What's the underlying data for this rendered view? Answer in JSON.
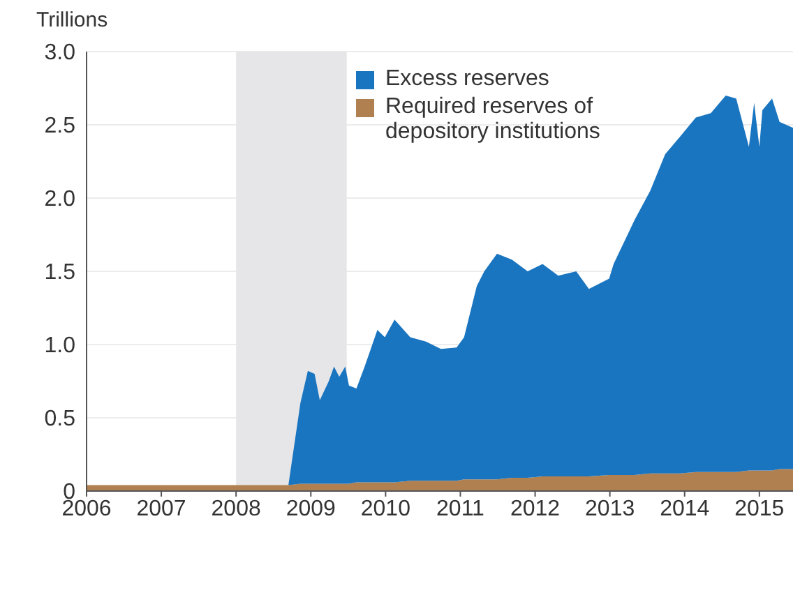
{
  "chart_data": {
    "type": "area",
    "stacked": true,
    "ylabel": "Trillions",
    "x": [
      2006,
      2007,
      2008,
      2008.7,
      2008.86,
      2008.96,
      2009.05,
      2009.12,
      2009.24,
      2009.31,
      2009.38,
      2009.46,
      2009.51,
      2009.61,
      2009.72,
      2009.89,
      2009.99,
      2010.12,
      2010.33,
      2010.54,
      2010.74,
      2010.95,
      2011.05,
      2011.22,
      2011.32,
      2011.49,
      2011.69,
      2011.9,
      2012.1,
      2012.31,
      2012.55,
      2012.72,
      2012.99,
      2013.05,
      2013.33,
      2013.54,
      2013.74,
      2013.94,
      2014.15,
      2014.35,
      2014.55,
      2014.69,
      2014.86,
      2014.93,
      2015.0,
      2015.04,
      2015.17,
      2015.27,
      2015.45
    ],
    "series": [
      {
        "name": "Required reserves of depository institutions",
        "color": "#b08050",
        "values": [
          0.04,
          0.04,
          0.04,
          0.04,
          0.05,
          0.05,
          0.05,
          0.05,
          0.05,
          0.05,
          0.05,
          0.05,
          0.05,
          0.06,
          0.06,
          0.06,
          0.06,
          0.06,
          0.07,
          0.07,
          0.07,
          0.07,
          0.08,
          0.08,
          0.08,
          0.08,
          0.09,
          0.09,
          0.1,
          0.1,
          0.1,
          0.1,
          0.11,
          0.11,
          0.11,
          0.12,
          0.12,
          0.12,
          0.13,
          0.13,
          0.13,
          0.13,
          0.14,
          0.14,
          0.14,
          0.14,
          0.14,
          0.15,
          0.15
        ]
      },
      {
        "name": "Excess reserves",
        "color": "#1a75c0",
        "values": [
          0,
          0,
          0,
          0,
          0.55,
          0.77,
          0.75,
          0.57,
          0.7,
          0.8,
          0.73,
          0.8,
          0.67,
          0.64,
          0.79,
          1.04,
          0.99,
          1.11,
          0.98,
          0.95,
          0.9,
          0.91,
          0.97,
          1.32,
          1.42,
          1.54,
          1.49,
          1.41,
          1.45,
          1.37,
          1.4,
          1.28,
          1.34,
          1.44,
          1.74,
          1.93,
          2.18,
          2.3,
          2.42,
          2.45,
          2.57,
          2.55,
          2.21,
          2.51,
          2.21,
          2.46,
          2.54,
          2.37,
          2.33
        ]
      }
    ],
    "xlim": [
      2006,
      2015.45
    ],
    "xticks": [
      2006,
      2007,
      2008,
      2009,
      2010,
      2011,
      2012,
      2013,
      2014,
      2015
    ],
    "ylim": [
      0,
      3
    ],
    "yticks": [
      0,
      {
        "value": 0.5,
        "label": "0.5"
      },
      {
        "value": 1,
        "label": "1.0"
      },
      {
        "value": 1.5,
        "label": "1.5"
      },
      {
        "value": 2,
        "label": "2.0"
      },
      {
        "value": 2.5,
        "label": "2.5"
      },
      {
        "value": 3,
        "label": "3.0"
      }
    ],
    "bands": [
      {
        "axis": "x",
        "from": 2008,
        "to": 2009.48,
        "color": "#e6e6e8"
      }
    ],
    "grid": "y",
    "legend": "top"
  }
}
